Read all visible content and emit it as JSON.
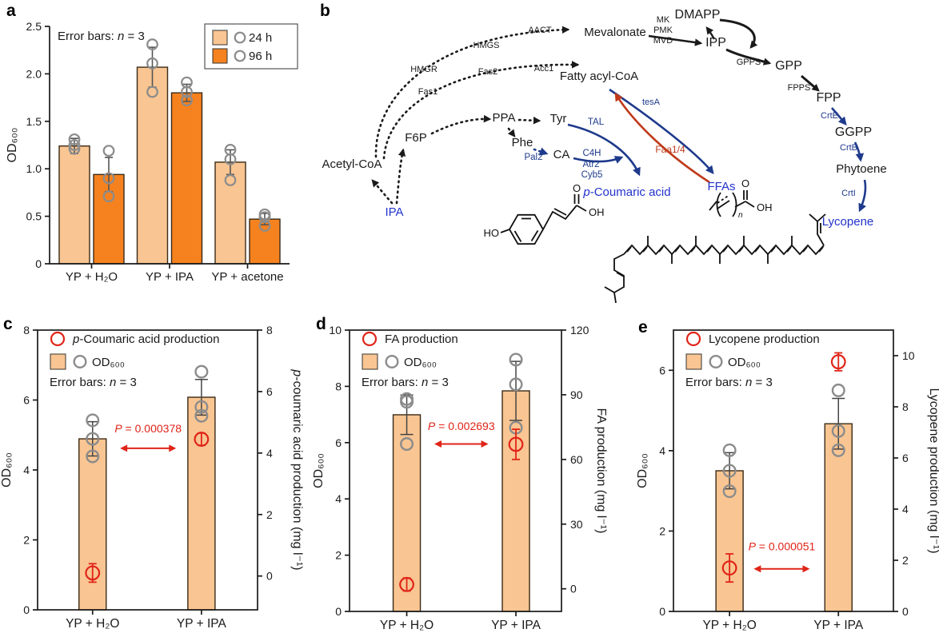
{
  "panels": {
    "a": "a",
    "b": "b",
    "c": "c",
    "d": "d",
    "e": "e"
  },
  "colors": {
    "bar_light": "#f9c592",
    "bar_dark": "#f5821f",
    "bar_stroke": "#3a2a18",
    "gray_marker": "#8c8c8c",
    "red": "#e02418",
    "red_arrow": "#bf3a1a",
    "blue_metabolite": "#2233cc",
    "blue_enzyme": "#1e3a8c",
    "black": "#1a1a1a"
  },
  "chart_data": [
    {
      "panel": "a",
      "type": "bar",
      "grouped": true,
      "categories": [
        "YP + H₂O",
        "YP + IPA",
        "YP + acetone"
      ],
      "series": [
        {
          "name": "24 h",
          "color_key": "bar_light",
          "values": [
            1.24,
            2.07,
            1.07
          ],
          "errors": [
            0.08,
            0.21,
            0.13
          ],
          "points": [
            [
              1.21,
              1.25,
              1.31
            ],
            [
              1.81,
              2.11,
              2.31
            ],
            [
              0.88,
              1.1,
              1.2
            ]
          ]
        },
        {
          "name": "96 h",
          "color_key": "bar_dark",
          "values": [
            0.94,
            1.8,
            0.47
          ],
          "errors": [
            0.18,
            0.09,
            0.06
          ],
          "points": [
            [
              0.71,
              0.9,
              1.19
            ],
            [
              1.72,
              1.81,
              1.91
            ],
            [
              0.4,
              0.49,
              0.52
            ]
          ]
        }
      ],
      "ylabel": "OD₆₀₀",
      "ylim": [
        0,
        2.5
      ],
      "yticks": [
        0,
        0.5,
        1,
        1.5,
        2,
        2.5
      ],
      "ytick_labels": [
        "0",
        "0.5",
        "1.0",
        "1.5",
        "2.0",
        "2.5"
      ],
      "note": [
        {
          "t": "Error bars: "
        },
        {
          "t": "n",
          "i": true
        },
        {
          "t": " = 3"
        }
      ],
      "legend_position": "top-right",
      "grid": false
    },
    {
      "panel": "c",
      "type": "bar-dual-axis",
      "categories": [
        "YP + H₂O",
        "YP + IPA"
      ],
      "bars": {
        "name": "OD₆₀₀",
        "color_key": "bar_light",
        "values": [
          4.89,
          6.08
        ],
        "errors": [
          0.49,
          0.51
        ],
        "points": [
          [
            4.39,
            4.89,
            5.42
          ],
          [
            5.55,
            5.8,
            6.81
          ]
        ]
      },
      "red_series": {
        "name": [
          {
            "t": "p",
            "i": true
          },
          {
            "t": "-Coumaric acid production"
          }
        ],
        "axis": "right",
        "values": [
          0.1,
          4.45
        ],
        "errors": [
          0.3,
          0.2
        ]
      },
      "left_axis": {
        "label": "OD₆₀₀",
        "lim": [
          0,
          8
        ],
        "ticks": [
          0,
          2,
          4,
          6,
          8
        ],
        "tick_labels": [
          "0",
          "2",
          "4",
          "6",
          "8"
        ]
      },
      "right_axis": {
        "label": [
          {
            "t": "p",
            "i": true
          },
          {
            "t": "-coumaric acid production (mg l⁻¹)"
          }
        ],
        "lim": [
          -1.1,
          8
        ],
        "ticks": [
          0,
          2,
          4,
          6,
          8
        ],
        "tick_labels": [
          "0",
          "2",
          "4",
          "6",
          "8"
        ]
      },
      "p_value": [
        {
          "t": "P",
          "i": true
        },
        {
          "t": " = 0.000378"
        }
      ],
      "note": [
        {
          "t": "Error bars: "
        },
        {
          "t": "n",
          "i": true
        },
        {
          "t": " = 3"
        }
      ]
    },
    {
      "panel": "d",
      "type": "bar-dual-axis",
      "categories": [
        "YP + H₂O",
        "YP + IPA"
      ],
      "bars": {
        "name": "OD₆₀₀",
        "color_key": "bar_light",
        "values": [
          6.99,
          7.84
        ],
        "errors": [
          0.7,
          1.05
        ],
        "points": [
          [
            5.95,
            7.45,
            7.55
          ],
          [
            6.53,
            8.07,
            8.95
          ]
        ]
      },
      "red_series": {
        "name": "FA production",
        "axis": "right",
        "values": [
          2,
          67
        ],
        "errors": [
          3,
          7
        ]
      },
      "left_axis": {
        "label": "OD₆₀₀",
        "lim": [
          0,
          10
        ],
        "ticks": [
          0,
          2,
          4,
          6,
          8,
          10
        ],
        "tick_labels": [
          "0",
          "2",
          "4",
          "6",
          "8",
          "10"
        ]
      },
      "right_axis": {
        "label": "FA production (mg l⁻¹)",
        "lim": [
          -10.5,
          120
        ],
        "ticks": [
          0,
          30,
          60,
          90,
          120
        ],
        "tick_labels": [
          "0",
          "30",
          "60",
          "90",
          "120"
        ]
      },
      "p_value": [
        {
          "t": "P",
          "i": true
        },
        {
          "t": " = 0.002693"
        }
      ],
      "note": [
        {
          "t": "Error bars: "
        },
        {
          "t": "n",
          "i": true
        },
        {
          "t": " = 3"
        }
      ]
    },
    {
      "panel": "e",
      "type": "bar-dual-axis",
      "categories": [
        "YP + H₂O",
        "YP + IPA"
      ],
      "bars": {
        "name": "OD₆₀₀",
        "color_key": "bar_light",
        "values": [
          3.5,
          4.67
        ],
        "errors": [
          0.45,
          0.63
        ],
        "points": [
          [
            2.99,
            3.5,
            4.01
          ],
          [
            4.01,
            4.49,
            5.5
          ]
        ]
      },
      "red_series": {
        "name": "Lycopene production",
        "axis": "right",
        "values": [
          1.7,
          9.76
        ],
        "errors": [
          0.55,
          0.35
        ]
      },
      "left_axis": {
        "label": "OD₆₀₀",
        "lim": [
          0,
          7
        ],
        "ticks": [
          0,
          2,
          4,
          6
        ],
        "tick_labels": [
          "0",
          "2",
          "4",
          "6"
        ]
      },
      "right_axis": {
        "label": "Lycopene production (mg l⁻¹)",
        "lim": [
          0,
          11
        ],
        "ticks": [
          0,
          2,
          4,
          6,
          8,
          10
        ],
        "tick_labels": [
          "0",
          "2",
          "4",
          "6",
          "8",
          "10"
        ]
      },
      "p_value": [
        {
          "t": "P",
          "i": true
        },
        {
          "t": " = 0.000051"
        }
      ],
      "note": [
        {
          "t": "Error bars: "
        },
        {
          "t": "n",
          "i": true
        },
        {
          "t": " = 3"
        }
      ]
    }
  ],
  "panel_b": {
    "nodes": {
      "acetyl_coa": {
        "t": "Acetyl-CoA",
        "c": "black"
      },
      "ipa": {
        "t": "IPA",
        "c": "blue_m"
      },
      "f6p": {
        "t": "F6P",
        "c": "black"
      },
      "ppa": {
        "t": "PPA",
        "c": "black"
      },
      "tyr": {
        "t": "Tyr",
        "c": "black"
      },
      "phe": {
        "t": "Phe",
        "c": "black"
      },
      "ca": {
        "t": "CA",
        "c": "black"
      },
      "mevalonate": {
        "t": "Mevalonate",
        "c": "black"
      },
      "dmapp": {
        "t": "DMAPP",
        "c": "black"
      },
      "ipp": {
        "t": "IPP",
        "c": "black"
      },
      "gpp": {
        "t": "GPP",
        "c": "black"
      },
      "fpp": {
        "t": "FPP",
        "c": "black"
      },
      "ggpp": {
        "t": "GGPP",
        "c": "black"
      },
      "phytoene": {
        "t": "Phytoene",
        "c": "black"
      },
      "lycopene": {
        "t": "Lycopene",
        "c": "blue_m"
      },
      "fatty_acyl_coa": {
        "t": "Fatty acyl-CoA",
        "c": "black"
      },
      "ffas": {
        "t": "FFAs",
        "c": "blue_m"
      },
      "p_coumaric_acid": {
        "rich": [
          {
            "t": "p",
            "i": true
          },
          {
            "t": "-Coumaric acid"
          }
        ],
        "c": "blue_m"
      }
    },
    "enzymes": {
      "aact": {
        "t": "AACT",
        "c": "black"
      },
      "hmgs": {
        "t": "HMGS",
        "c": "black"
      },
      "hmgr": {
        "t": "HMGR",
        "c": "black"
      },
      "fas1": {
        "t": "Fas1",
        "c": "black"
      },
      "fas2": {
        "t": "Fas2",
        "c": "black"
      },
      "acc1": {
        "t": "Acc1",
        "c": "black"
      },
      "mk": {
        "t": "MK",
        "c": "black"
      },
      "pmk": {
        "t": "PMK",
        "c": "black"
      },
      "mvd": {
        "t": "MVD",
        "c": "black"
      },
      "gpps": {
        "t": "GPPS",
        "c": "black"
      },
      "fpps": {
        "t": "FPPS",
        "c": "black"
      },
      "crte": {
        "t": "CrtE",
        "c": "blue_e"
      },
      "crtb": {
        "t": "CrtB",
        "c": "blue_e"
      },
      "crti": {
        "t": "CrtI",
        "c": "blue_e"
      },
      "tesa": {
        "t": "tesA",
        "c": "blue_e"
      },
      "tal": {
        "t": "TAL",
        "c": "blue_e"
      },
      "pal2": {
        "t": "Pal2",
        "c": "blue_e"
      },
      "c4h": {
        "t": "C4H",
        "c": "blue_e"
      },
      "atr2": {
        "t": "Atr2",
        "c": "blue_e"
      },
      "cyb5": {
        "t": "Cyb5",
        "c": "blue_e"
      },
      "faa14": {
        "t": "Faa1/4",
        "c": "red"
      }
    },
    "structure_labels": {
      "pca_ho": "HO",
      "pca_o": "O",
      "pca_oh": "OH",
      "ffa_o": "O",
      "ffa_oh": "OH",
      "ffa_n": "n"
    }
  }
}
